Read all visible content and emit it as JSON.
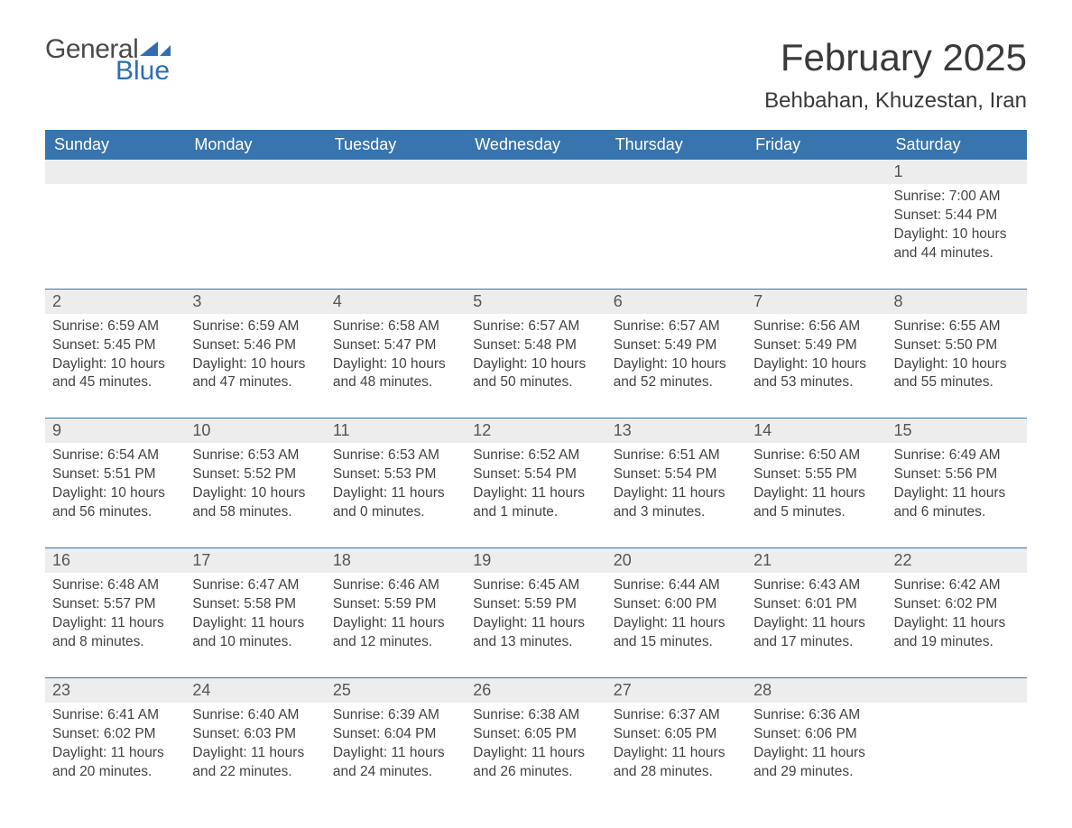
{
  "logo": {
    "word1": "General",
    "word2": "Blue",
    "flag_color": "#2f6fb0"
  },
  "title": {
    "month": "February 2025",
    "location": "Behbahan, Khuzestan, Iran"
  },
  "colors": {
    "header_bg": "#3874ad",
    "header_fg": "#ffffff",
    "daynum_bg": "#ededed",
    "rule": "#3874ad",
    "text": "#444444"
  },
  "calendar": {
    "type": "table",
    "columns": [
      "Sunday",
      "Monday",
      "Tuesday",
      "Wednesday",
      "Thursday",
      "Friday",
      "Saturday"
    ],
    "weeks": [
      [
        null,
        null,
        null,
        null,
        null,
        null,
        {
          "n": "1",
          "sunrise": "7:00 AM",
          "sunset": "5:44 PM",
          "daylight": "10 hours and 44 minutes."
        }
      ],
      [
        {
          "n": "2",
          "sunrise": "6:59 AM",
          "sunset": "5:45 PM",
          "daylight": "10 hours and 45 minutes."
        },
        {
          "n": "3",
          "sunrise": "6:59 AM",
          "sunset": "5:46 PM",
          "daylight": "10 hours and 47 minutes."
        },
        {
          "n": "4",
          "sunrise": "6:58 AM",
          "sunset": "5:47 PM",
          "daylight": "10 hours and 48 minutes."
        },
        {
          "n": "5",
          "sunrise": "6:57 AM",
          "sunset": "5:48 PM",
          "daylight": "10 hours and 50 minutes."
        },
        {
          "n": "6",
          "sunrise": "6:57 AM",
          "sunset": "5:49 PM",
          "daylight": "10 hours and 52 minutes."
        },
        {
          "n": "7",
          "sunrise": "6:56 AM",
          "sunset": "5:49 PM",
          "daylight": "10 hours and 53 minutes."
        },
        {
          "n": "8",
          "sunrise": "6:55 AM",
          "sunset": "5:50 PM",
          "daylight": "10 hours and 55 minutes."
        }
      ],
      [
        {
          "n": "9",
          "sunrise": "6:54 AM",
          "sunset": "5:51 PM",
          "daylight": "10 hours and 56 minutes."
        },
        {
          "n": "10",
          "sunrise": "6:53 AM",
          "sunset": "5:52 PM",
          "daylight": "10 hours and 58 minutes."
        },
        {
          "n": "11",
          "sunrise": "6:53 AM",
          "sunset": "5:53 PM",
          "daylight": "11 hours and 0 minutes."
        },
        {
          "n": "12",
          "sunrise": "6:52 AM",
          "sunset": "5:54 PM",
          "daylight": "11 hours and 1 minute."
        },
        {
          "n": "13",
          "sunrise": "6:51 AM",
          "sunset": "5:54 PM",
          "daylight": "11 hours and 3 minutes."
        },
        {
          "n": "14",
          "sunrise": "6:50 AM",
          "sunset": "5:55 PM",
          "daylight": "11 hours and 5 minutes."
        },
        {
          "n": "15",
          "sunrise": "6:49 AM",
          "sunset": "5:56 PM",
          "daylight": "11 hours and 6 minutes."
        }
      ],
      [
        {
          "n": "16",
          "sunrise": "6:48 AM",
          "sunset": "5:57 PM",
          "daylight": "11 hours and 8 minutes."
        },
        {
          "n": "17",
          "sunrise": "6:47 AM",
          "sunset": "5:58 PM",
          "daylight": "11 hours and 10 minutes."
        },
        {
          "n": "18",
          "sunrise": "6:46 AM",
          "sunset": "5:59 PM",
          "daylight": "11 hours and 12 minutes."
        },
        {
          "n": "19",
          "sunrise": "6:45 AM",
          "sunset": "5:59 PM",
          "daylight": "11 hours and 13 minutes."
        },
        {
          "n": "20",
          "sunrise": "6:44 AM",
          "sunset": "6:00 PM",
          "daylight": "11 hours and 15 minutes."
        },
        {
          "n": "21",
          "sunrise": "6:43 AM",
          "sunset": "6:01 PM",
          "daylight": "11 hours and 17 minutes."
        },
        {
          "n": "22",
          "sunrise": "6:42 AM",
          "sunset": "6:02 PM",
          "daylight": "11 hours and 19 minutes."
        }
      ],
      [
        {
          "n": "23",
          "sunrise": "6:41 AM",
          "sunset": "6:02 PM",
          "daylight": "11 hours and 20 minutes."
        },
        {
          "n": "24",
          "sunrise": "6:40 AM",
          "sunset": "6:03 PM",
          "daylight": "11 hours and 22 minutes."
        },
        {
          "n": "25",
          "sunrise": "6:39 AM",
          "sunset": "6:04 PM",
          "daylight": "11 hours and 24 minutes."
        },
        {
          "n": "26",
          "sunrise": "6:38 AM",
          "sunset": "6:05 PM",
          "daylight": "11 hours and 26 minutes."
        },
        {
          "n": "27",
          "sunrise": "6:37 AM",
          "sunset": "6:05 PM",
          "daylight": "11 hours and 28 minutes."
        },
        {
          "n": "28",
          "sunrise": "6:36 AM",
          "sunset": "6:06 PM",
          "daylight": "11 hours and 29 minutes."
        },
        null
      ]
    ],
    "labels": {
      "sunrise": "Sunrise: ",
      "sunset": "Sunset: ",
      "daylight": "Daylight: "
    }
  }
}
